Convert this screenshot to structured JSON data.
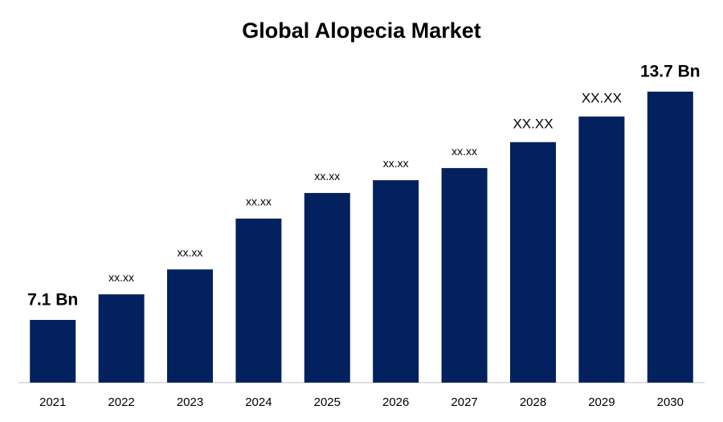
{
  "chart_data": {
    "type": "bar",
    "title": "Global Alopecia Market",
    "categories": [
      "2021",
      "2022",
      "2023",
      "2024",
      "2025",
      "2026",
      "2027",
      "2028",
      "2029",
      "2030"
    ],
    "values": [
      7.1,
      7.84,
      8.56,
      10.03,
      10.77,
      11.14,
      11.49,
      12.24,
      12.98,
      13.7
    ],
    "value_labels": [
      "7.1 Bn",
      "xx.xx",
      "xx.xx",
      "xx.xx",
      "xx.xx",
      "xx.xx",
      "xx.xx",
      "XX.XX",
      "XX.XX",
      "13.7 Bn"
    ],
    "color": "#03215f"
  }
}
